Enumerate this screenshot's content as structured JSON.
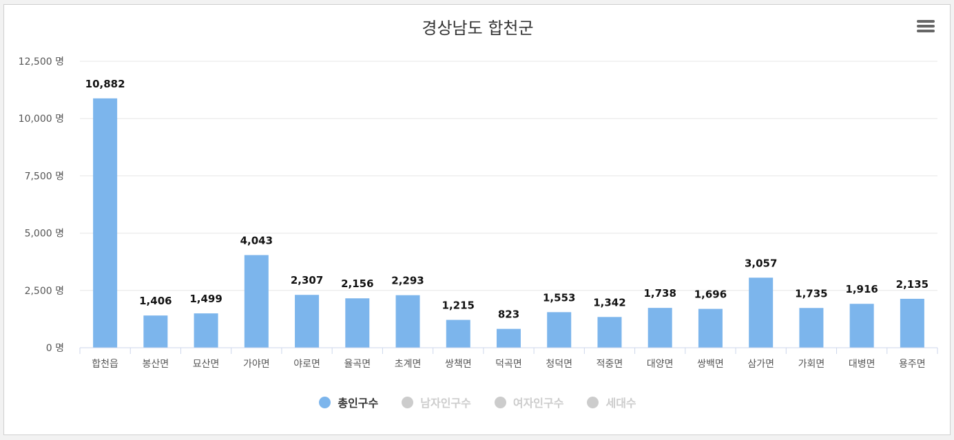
{
  "chart_data": {
    "type": "bar",
    "title": "경상남도 합천군",
    "categories": [
      "합천읍",
      "봉산면",
      "묘산면",
      "가야면",
      "야로면",
      "율곡면",
      "초계면",
      "쌍책면",
      "덕곡면",
      "청덕면",
      "적중면",
      "대양면",
      "쌍백면",
      "삼가면",
      "가회면",
      "대병면",
      "용주면"
    ],
    "series": [
      {
        "name": "총인구수",
        "values": [
          10882,
          1406,
          1499,
          4043,
          2307,
          2156,
          2293,
          1215,
          823,
          1553,
          1342,
          1738,
          1696,
          3057,
          1735,
          1916,
          2135
        ]
      }
    ],
    "value_labels": [
      "10,882",
      "1,406",
      "1,499",
      "4,043",
      "2,307",
      "2,156",
      "2,293",
      "1,215",
      "823",
      "1,553",
      "1,342",
      "1,738",
      "1,696",
      "3,057",
      "1,735",
      "1,916",
      "2,135"
    ],
    "ylim": [
      0,
      12500
    ],
    "yticks": [
      0,
      2500,
      5000,
      7500,
      10000,
      12500
    ],
    "ytick_labels": [
      "0 명",
      "2,500 명",
      "5,000 명",
      "7,500 명",
      "10,000 명",
      "12,500 명"
    ],
    "grid": true,
    "legend_position": "bottom-center",
    "legend": [
      {
        "label": "총인구수",
        "active": true
      },
      {
        "label": "남자인구수",
        "active": false
      },
      {
        "label": "여자인구수",
        "active": false
      },
      {
        "label": "세대수",
        "active": false
      }
    ],
    "colors": {
      "bar": "#7cb5ec",
      "legend_active_text": "#333333",
      "legend_inactive": "#cccccc",
      "grid": "#e6e6e6",
      "axis": "#ccd6eb"
    }
  }
}
